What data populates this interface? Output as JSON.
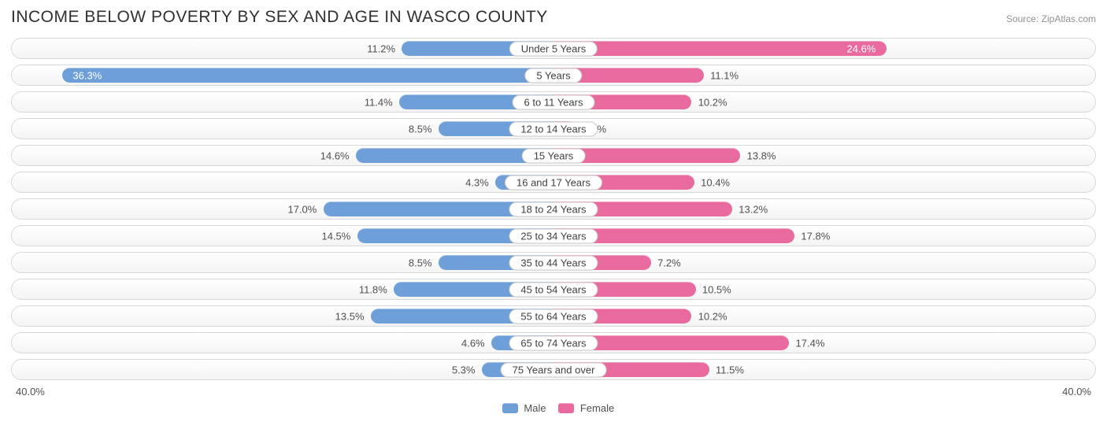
{
  "title": "INCOME BELOW POVERTY BY SEX AND AGE IN WASCO COUNTY",
  "source": "Source: ZipAtlas.com",
  "chart": {
    "type": "diverging-bar",
    "max_pct": 40.0,
    "axis_left_label": "40.0%",
    "axis_right_label": "40.0%",
    "male_color": "#6f9fd8",
    "female_color": "#e96a9f",
    "row_bg_top": "#ffffff",
    "row_bg_bottom": "#f4f4f4",
    "row_border": "#d8d8d8",
    "label_text_color": "#404040",
    "value_text_color": "#505050",
    "legend": [
      {
        "label": "Male",
        "color": "#6f9fd8"
      },
      {
        "label": "Female",
        "color": "#e96a9f"
      }
    ],
    "rows": [
      {
        "category": "Under 5 Years",
        "male": 11.2,
        "female": 24.6,
        "female_label_inside": true
      },
      {
        "category": "5 Years",
        "male": 36.3,
        "female": 11.1,
        "male_label_inside": true
      },
      {
        "category": "6 to 11 Years",
        "male": 11.4,
        "female": 10.2
      },
      {
        "category": "12 to 14 Years",
        "male": 8.5,
        "female": 1.7
      },
      {
        "category": "15 Years",
        "male": 14.6,
        "female": 13.8
      },
      {
        "category": "16 and 17 Years",
        "male": 4.3,
        "female": 10.4
      },
      {
        "category": "18 to 24 Years",
        "male": 17.0,
        "female": 13.2
      },
      {
        "category": "25 to 34 Years",
        "male": 14.5,
        "female": 17.8
      },
      {
        "category": "35 to 44 Years",
        "male": 8.5,
        "female": 7.2
      },
      {
        "category": "45 to 54 Years",
        "male": 11.8,
        "female": 10.5
      },
      {
        "category": "55 to 64 Years",
        "male": 13.5,
        "female": 10.2
      },
      {
        "category": "65 to 74 Years",
        "male": 4.6,
        "female": 17.4
      },
      {
        "category": "75 Years and over",
        "male": 5.3,
        "female": 11.5
      }
    ]
  }
}
